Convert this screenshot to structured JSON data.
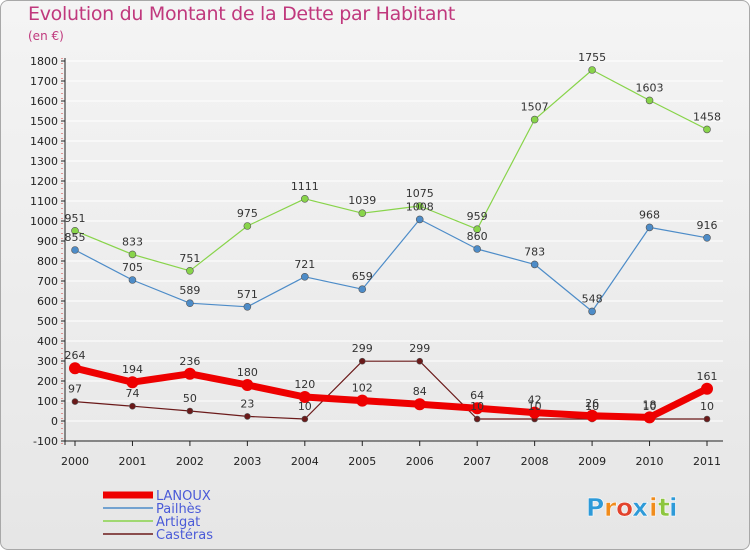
{
  "chart_data": {
    "type": "line",
    "title": "Evolution du Montant de la Dette par Habitant",
    "subtitle": "(en €)",
    "xlabel": "",
    "ylabel": "",
    "categories": [
      "2000",
      "2001",
      "2002",
      "2003",
      "2004",
      "2005",
      "2006",
      "2007",
      "2008",
      "2009",
      "2010",
      "2011"
    ],
    "ylim": [
      -100,
      1800
    ],
    "yticks": [
      -100,
      0,
      100,
      200,
      300,
      400,
      500,
      600,
      700,
      800,
      900,
      1000,
      1100,
      1200,
      1300,
      1400,
      1500,
      1600,
      1700,
      1800
    ],
    "grid": true,
    "legend_position": "bottom-left",
    "series": [
      {
        "name": "LANOUX",
        "color": "#ee0000",
        "values": [
          264,
          194,
          236,
          180,
          120,
          102,
          84,
          64,
          42,
          26,
          18,
          161
        ]
      },
      {
        "name": "Pailhès",
        "color": "#4d8cc8",
        "values": [
          855,
          705,
          589,
          571,
          721,
          659,
          1008,
          860,
          783,
          548,
          968,
          916
        ]
      },
      {
        "name": "Artigat",
        "color": "#88d44a",
        "values": [
          951,
          833,
          751,
          975,
          1111,
          1039,
          1075,
          959,
          1507,
          1755,
          1603,
          1458
        ]
      },
      {
        "name": "Castéras",
        "color": "#6b1a1a",
        "values": [
          97,
          74,
          50,
          23,
          10,
          299,
          299,
          10,
          10,
          10,
          10,
          10
        ]
      }
    ]
  },
  "logo": {
    "text": "Proxiti",
    "colors": [
      "#2e9ad8",
      "#f08c1c",
      "#e2432d",
      "#2e9ad8",
      "#f08c1c",
      "#8dc63f",
      "#2e9ad8"
    ]
  }
}
